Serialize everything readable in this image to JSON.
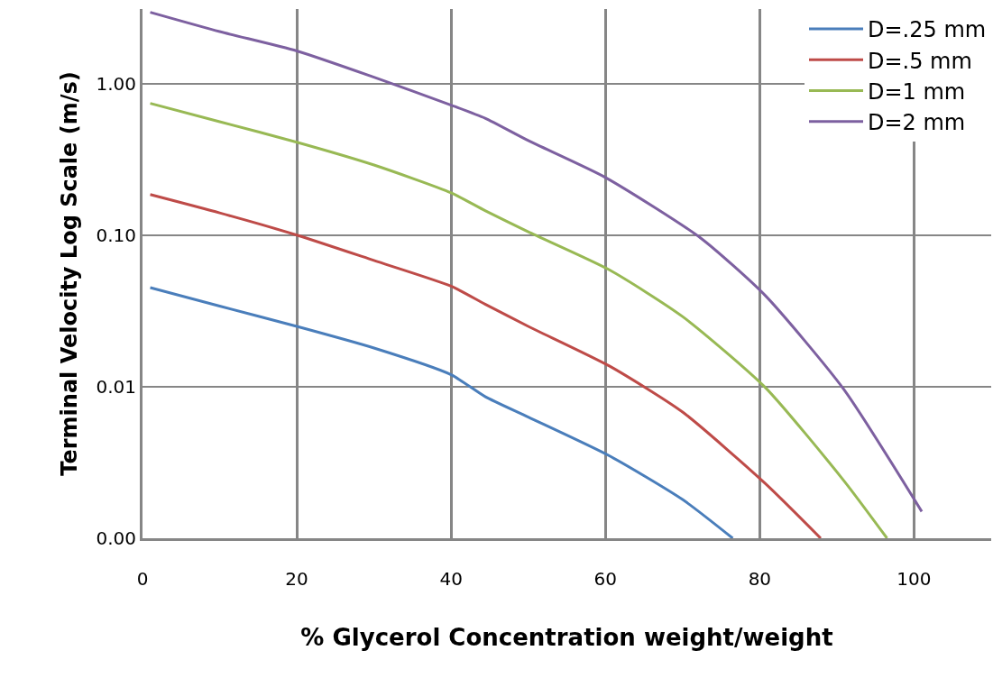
{
  "chart_data": {
    "type": "line",
    "xlabel": "% Glycerol Concentration weight/weight",
    "ylabel": "Terminal Velocity Log Scale (m/s)",
    "log": "y",
    "grid": true,
    "legend": "top right",
    "marker": "none",
    "line_style": "solid",
    "xlim": [
      0,
      110
    ],
    "xticks": [
      0,
      20,
      40,
      60,
      80,
      100
    ],
    "ylim": [
      0.001,
      3.1
    ],
    "yticks": [
      {
        "value": 0.001,
        "label": "0.00"
      },
      0.01,
      {
        "value": 0.1,
        "label": "0.10"
      },
      {
        "value": 1,
        "label": "1.00"
      }
    ],
    "series": [
      {
        "name": "D=.25 mm",
        "color": "#4a7ebb",
        "x": [
          1,
          10,
          20,
          30,
          40,
          44.4,
          50,
          60.5,
          70,
          76.5
        ],
        "values": [
          0.045,
          0.034,
          0.025,
          0.018,
          0.012,
          0.0086,
          0.0063,
          0.0035,
          0.0018,
          0.001
        ]
      },
      {
        "name": "D=.5 mm",
        "color": "#be4b48",
        "x": [
          1,
          10,
          20,
          30,
          40,
          44.4,
          50,
          60.5,
          70,
          80.7,
          87.9
        ],
        "values": [
          0.185,
          0.14,
          0.1,
          0.068,
          0.046,
          0.035,
          0.025,
          0.0137,
          0.0068,
          0.0023,
          0.001
        ]
      },
      {
        "name": "D=1 mm",
        "color": "#98b954",
        "x": [
          1,
          10,
          20,
          30,
          40,
          44.4,
          50,
          60.5,
          70,
          80.7,
          90.9,
          96.5
        ],
        "values": [
          0.74,
          0.56,
          0.41,
          0.29,
          0.19,
          0.145,
          0.105,
          0.059,
          0.029,
          0.0099,
          0.0024,
          0.001
        ]
      },
      {
        "name": "D=2 mm",
        "color": "#7d60a0",
        "x": [
          1,
          10,
          20,
          30,
          40,
          44.4,
          50,
          60,
          72.3,
          80.7,
          90.9,
          101
        ],
        "values": [
          2.95,
          2.2,
          1.64,
          1.1,
          0.72,
          0.59,
          0.42,
          0.24,
          0.096,
          0.04,
          0.0096,
          0.0015
        ]
      }
    ]
  }
}
